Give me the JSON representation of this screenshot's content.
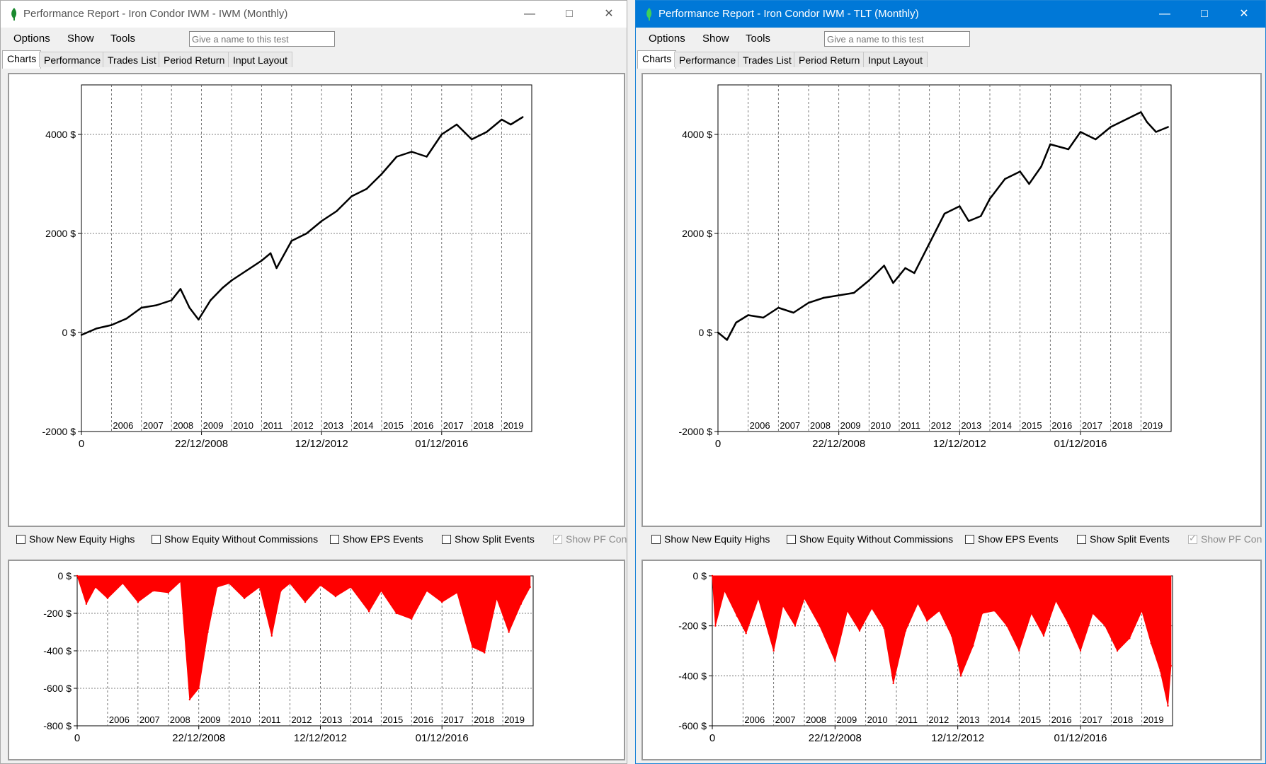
{
  "windows": [
    {
      "title": "Performance Report - Iron Condor IWM - IWM (Monthly)",
      "active": false,
      "menu": [
        "Options",
        "Show",
        "Tools"
      ],
      "name_placeholder": "Give a name to this test",
      "tabs": [
        "Charts",
        "Performance",
        "Trades List",
        "Period Return",
        "Input Layout"
      ],
      "selected_tab": 0,
      "checkboxes": [
        {
          "label": "Show New Equity Highs",
          "checked": false,
          "enabled": true
        },
        {
          "label": "Show Equity Without Commissions",
          "checked": false,
          "enabled": true
        },
        {
          "label": "Show EPS Events",
          "checked": false,
          "enabled": true
        },
        {
          "label": "Show Split Events",
          "checked": false,
          "enabled": true
        },
        {
          "label": "Show PF Con",
          "checked": true,
          "enabled": false
        }
      ],
      "equity_chart": {
        "type": "line",
        "y_ticks": [
          "4000 $",
          "2000 $",
          "0 $",
          "-2000 $"
        ],
        "y_values": [
          4000,
          2000,
          0,
          -2000
        ],
        "ylim": [
          -2000,
          5000
        ],
        "year_labels": [
          "2006",
          "2007",
          "2008",
          "2009",
          "2010",
          "2011",
          "2012",
          "2013",
          "2014",
          "2015",
          "2016",
          "2017",
          "2018",
          "2019"
        ],
        "date_labels": [
          "0",
          "22/12/2008",
          "12/12/2012",
          "01/12/2016"
        ],
        "series_color": "#000000",
        "series": [
          {
            "x": "2005",
            "y": -50
          },
          {
            "x": "2005.5",
            "y": 80
          },
          {
            "x": "2006",
            "y": 150
          },
          {
            "x": "2006.5",
            "y": 280
          },
          {
            "x": "2007",
            "y": 500
          },
          {
            "x": "2007.5",
            "y": 550
          },
          {
            "x": "2008",
            "y": 650
          },
          {
            "x": "2008.3",
            "y": 880
          },
          {
            "x": "2008.6",
            "y": 500
          },
          {
            "x": "2008.9",
            "y": 260
          },
          {
            "x": "2009.3",
            "y": 650
          },
          {
            "x": "2009.7",
            "y": 900
          },
          {
            "x": "2010",
            "y": 1050
          },
          {
            "x": "2010.5",
            "y": 1250
          },
          {
            "x": "2011",
            "y": 1450
          },
          {
            "x": "2011.3",
            "y": 1600
          },
          {
            "x": "2011.5",
            "y": 1300
          },
          {
            "x": "2012",
            "y": 1850
          },
          {
            "x": "2012.5",
            "y": 2000
          },
          {
            "x": "2013",
            "y": 2250
          },
          {
            "x": "2013.5",
            "y": 2450
          },
          {
            "x": "2014",
            "y": 2750
          },
          {
            "x": "2014.5",
            "y": 2900
          },
          {
            "x": "2015",
            "y": 3200
          },
          {
            "x": "2015.5",
            "y": 3550
          },
          {
            "x": "2016",
            "y": 3650
          },
          {
            "x": "2016.5",
            "y": 3550
          },
          {
            "x": "2017",
            "y": 4000
          },
          {
            "x": "2017.5",
            "y": 4200
          },
          {
            "x": "2018",
            "y": 3900
          },
          {
            "x": "2018.5",
            "y": 4050
          },
          {
            "x": "2019",
            "y": 4300
          },
          {
            "x": "2019.3",
            "y": 4200
          },
          {
            "x": "2019.7",
            "y": 4350
          }
        ]
      },
      "drawdown_chart": {
        "type": "area",
        "y_ticks": [
          "0 $",
          "-200 $",
          "-400 $",
          "-600 $",
          "-800 $"
        ],
        "y_values": [
          0,
          -200,
          -400,
          -600,
          -800
        ],
        "ylim": [
          -800,
          0
        ],
        "year_labels": [
          "2006",
          "2007",
          "2008",
          "2009",
          "2010",
          "2011",
          "2012",
          "2013",
          "2014",
          "2015",
          "2016",
          "2017",
          "2018",
          "2019"
        ],
        "date_labels": [
          "0",
          "22/12/2008",
          "12/12/2012",
          "01/12/2016"
        ],
        "series_color": "#ff0000",
        "series": [
          {
            "x": "2005",
            "y": 0
          },
          {
            "x": "2005.3",
            "y": -150
          },
          {
            "x": "2005.6",
            "y": -60
          },
          {
            "x": "2006",
            "y": -120
          },
          {
            "x": "2006.5",
            "y": -40
          },
          {
            "x": "2007",
            "y": -140
          },
          {
            "x": "2007.5",
            "y": -80
          },
          {
            "x": "2008",
            "y": -90
          },
          {
            "x": "2008.4",
            "y": -30
          },
          {
            "x": "2008.7",
            "y": -660
          },
          {
            "x": "2009",
            "y": -600
          },
          {
            "x": "2009.3",
            "y": -300
          },
          {
            "x": "2009.6",
            "y": -60
          },
          {
            "x": "2010",
            "y": -40
          },
          {
            "x": "2010.5",
            "y": -120
          },
          {
            "x": "2011",
            "y": -60
          },
          {
            "x": "2011.4",
            "y": -320
          },
          {
            "x": "2011.7",
            "y": -80
          },
          {
            "x": "2012",
            "y": -40
          },
          {
            "x": "2012.5",
            "y": -140
          },
          {
            "x": "2013",
            "y": -50
          },
          {
            "x": "2013.5",
            "y": -110
          },
          {
            "x": "2014",
            "y": -60
          },
          {
            "x": "2014.6",
            "y": -190
          },
          {
            "x": "2015",
            "y": -80
          },
          {
            "x": "2015.5",
            "y": -200
          },
          {
            "x": "2016",
            "y": -230
          },
          {
            "x": "2016.5",
            "y": -80
          },
          {
            "x": "2017",
            "y": -140
          },
          {
            "x": "2017.5",
            "y": -90
          },
          {
            "x": "2018",
            "y": -380
          },
          {
            "x": "2018.4",
            "y": -410
          },
          {
            "x": "2018.8",
            "y": -120
          },
          {
            "x": "2019.2",
            "y": -300
          },
          {
            "x": "2019.6",
            "y": -150
          },
          {
            "x": "2019.9",
            "y": -60
          }
        ]
      }
    },
    {
      "title": "Performance Report - Iron Condor IWM - TLT (Monthly)",
      "active": true,
      "menu": [
        "Options",
        "Show",
        "Tools"
      ],
      "name_placeholder": "Give a name to this test",
      "tabs": [
        "Charts",
        "Performance",
        "Trades List",
        "Period Return",
        "Input Layout"
      ],
      "selected_tab": 0,
      "checkboxes": [
        {
          "label": "Show New Equity Highs",
          "checked": false,
          "enabled": true
        },
        {
          "label": "Show Equity Without Commissions",
          "checked": false,
          "enabled": true
        },
        {
          "label": "Show EPS Events",
          "checked": false,
          "enabled": true
        },
        {
          "label": "Show Split Events",
          "checked": false,
          "enabled": true
        },
        {
          "label": "Show PF Con",
          "checked": true,
          "enabled": false
        }
      ],
      "equity_chart": {
        "type": "line",
        "y_ticks": [
          "4000 $",
          "2000 $",
          "0 $",
          "-2000 $"
        ],
        "y_values": [
          4000,
          2000,
          0,
          -2000
        ],
        "ylim": [
          -2000,
          5000
        ],
        "year_labels": [
          "2006",
          "2007",
          "2008",
          "2009",
          "2010",
          "2011",
          "2012",
          "2013",
          "2014",
          "2015",
          "2016",
          "2017",
          "2018",
          "2019"
        ],
        "date_labels": [
          "0",
          "22/12/2008",
          "12/12/2012",
          "01/12/2016"
        ],
        "series_color": "#000000",
        "series": [
          {
            "x": "2005",
            "y": 0
          },
          {
            "x": "2005.3",
            "y": -150
          },
          {
            "x": "2005.6",
            "y": 200
          },
          {
            "x": "2006",
            "y": 350
          },
          {
            "x": "2006.5",
            "y": 300
          },
          {
            "x": "2007",
            "y": 500
          },
          {
            "x": "2007.5",
            "y": 400
          },
          {
            "x": "2008",
            "y": 600
          },
          {
            "x": "2008.5",
            "y": 700
          },
          {
            "x": "2009",
            "y": 750
          },
          {
            "x": "2009.5",
            "y": 800
          },
          {
            "x": "2010",
            "y": 1050
          },
          {
            "x": "2010.5",
            "y": 1350
          },
          {
            "x": "2010.8",
            "y": 1000
          },
          {
            "x": "2011.2",
            "y": 1300
          },
          {
            "x": "2011.5",
            "y": 1200
          },
          {
            "x": "2012",
            "y": 1800
          },
          {
            "x": "2012.5",
            "y": 2400
          },
          {
            "x": "2013",
            "y": 2550
          },
          {
            "x": "2013.3",
            "y": 2250
          },
          {
            "x": "2013.7",
            "y": 2350
          },
          {
            "x": "2014",
            "y": 2700
          },
          {
            "x": "2014.5",
            "y": 3100
          },
          {
            "x": "2015",
            "y": 3250
          },
          {
            "x": "2015.3",
            "y": 3000
          },
          {
            "x": "2015.7",
            "y": 3350
          },
          {
            "x": "2016",
            "y": 3800
          },
          {
            "x": "2016.3",
            "y": 3750
          },
          {
            "x": "2016.6",
            "y": 3700
          },
          {
            "x": "2017",
            "y": 4050
          },
          {
            "x": "2017.5",
            "y": 3900
          },
          {
            "x": "2018",
            "y": 4150
          },
          {
            "x": "2018.5",
            "y": 4300
          },
          {
            "x": "2019",
            "y": 4450
          },
          {
            "x": "2019.2",
            "y": 4250
          },
          {
            "x": "2019.5",
            "y": 4050
          },
          {
            "x": "2019.9",
            "y": 4150
          }
        ]
      },
      "drawdown_chart": {
        "type": "area",
        "y_ticks": [
          "0 $",
          "-200 $",
          "-400 $",
          "-600 $"
        ],
        "y_values": [
          0,
          -200,
          -400,
          -600
        ],
        "ylim": [
          -600,
          0
        ],
        "year_labels": [
          "2006",
          "2007",
          "2008",
          "2009",
          "2010",
          "2011",
          "2012",
          "2013",
          "2014",
          "2015",
          "2016",
          "2017",
          "2018",
          "2019"
        ],
        "date_labels": [
          "0",
          "22/12/2008",
          "12/12/2012",
          "01/12/2016"
        ],
        "series_color": "#ff0000",
        "series": [
          {
            "x": "2005",
            "y": 0
          },
          {
            "x": "2005.1",
            "y": -200
          },
          {
            "x": "2005.4",
            "y": -60
          },
          {
            "x": "2005.8",
            "y": -160
          },
          {
            "x": "2006.1",
            "y": -230
          },
          {
            "x": "2006.5",
            "y": -90
          },
          {
            "x": "2007",
            "y": -300
          },
          {
            "x": "2007.3",
            "y": -120
          },
          {
            "x": "2007.7",
            "y": -200
          },
          {
            "x": "2008",
            "y": -90
          },
          {
            "x": "2008.5",
            "y": -200
          },
          {
            "x": "2009",
            "y": -340
          },
          {
            "x": "2009.4",
            "y": -140
          },
          {
            "x": "2009.8",
            "y": -220
          },
          {
            "x": "2010.2",
            "y": -130
          },
          {
            "x": "2010.6",
            "y": -210
          },
          {
            "x": "2010.9",
            "y": -430
          },
          {
            "x": "2011.3",
            "y": -220
          },
          {
            "x": "2011.7",
            "y": -110
          },
          {
            "x": "2012",
            "y": -180
          },
          {
            "x": "2012.4",
            "y": -140
          },
          {
            "x": "2012.8",
            "y": -240
          },
          {
            "x": "2013.1",
            "y": -400
          },
          {
            "x": "2013.5",
            "y": -280
          },
          {
            "x": "2013.8",
            "y": -150
          },
          {
            "x": "2014.2",
            "y": -140
          },
          {
            "x": "2014.6",
            "y": -200
          },
          {
            "x": "2015",
            "y": -300
          },
          {
            "x": "2015.4",
            "y": -150
          },
          {
            "x": "2015.8",
            "y": -240
          },
          {
            "x": "2016.2",
            "y": -100
          },
          {
            "x": "2016.6",
            "y": -190
          },
          {
            "x": "2017",
            "y": -300
          },
          {
            "x": "2017.4",
            "y": -150
          },
          {
            "x": "2017.8",
            "y": -200
          },
          {
            "x": "2018.2",
            "y": -300
          },
          {
            "x": "2018.6",
            "y": -250
          },
          {
            "x": "2019",
            "y": -140
          },
          {
            "x": "2019.3",
            "y": -270
          },
          {
            "x": "2019.6",
            "y": -380
          },
          {
            "x": "2019.85",
            "y": -520
          },
          {
            "x": "2019.95",
            "y": -360
          }
        ]
      }
    }
  ]
}
